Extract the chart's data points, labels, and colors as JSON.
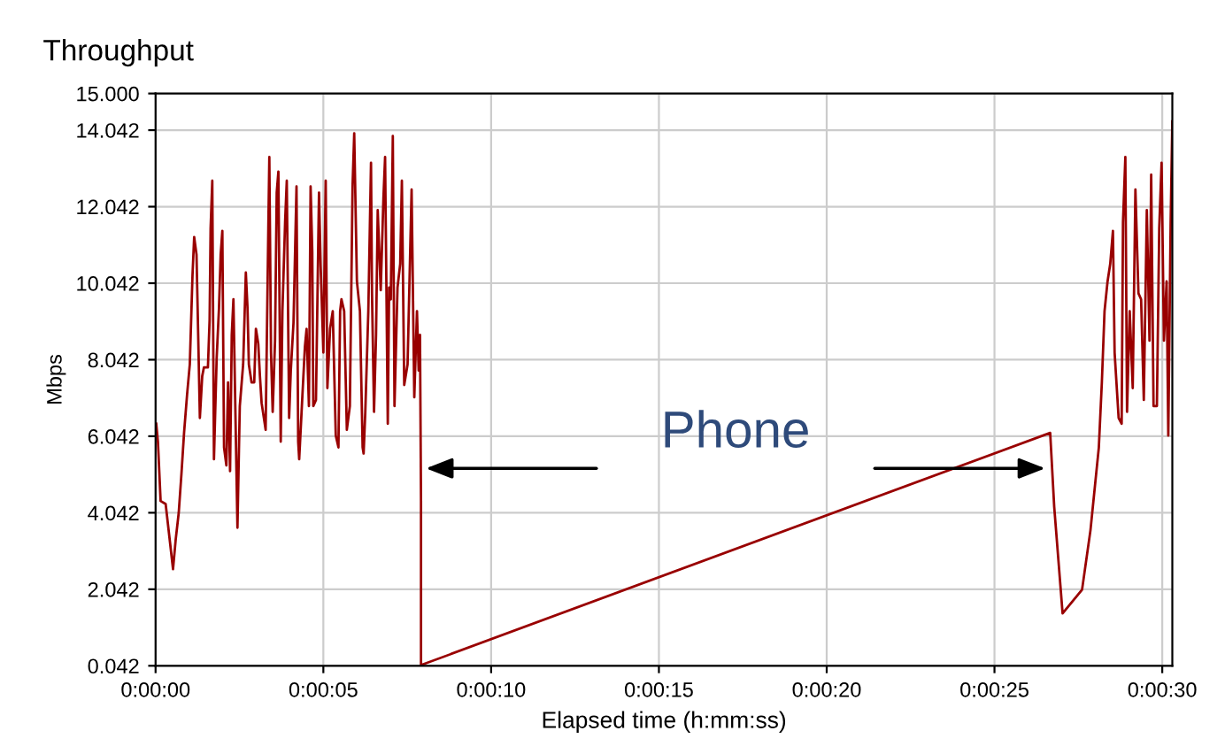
{
  "chart_data": {
    "type": "line",
    "title": "Throughput",
    "xlabel": "Elapsed time (h:mm:ss)",
    "ylabel": "Mbps",
    "annotations": [
      "Phone"
    ],
    "x": [
      0.02,
      0.07,
      0.15,
      0.3,
      0.43,
      0.52,
      0.6,
      0.69,
      0.77,
      0.85,
      0.94,
      1.02,
      1.1,
      1.15,
      1.22,
      1.27,
      1.32,
      1.39,
      1.44,
      1.56,
      1.61,
      1.64,
      1.69,
      1.74,
      1.82,
      1.89,
      1.94,
      1.99,
      2.04,
      2.11,
      2.16,
      2.22,
      2.27,
      2.32,
      2.41,
      2.44,
      2.51,
      2.61,
      2.69,
      2.74,
      2.78,
      2.86,
      2.94,
      2.99,
      3.06,
      3.11,
      3.16,
      3.28,
      3.36,
      3.39,
      3.44,
      3.49,
      3.56,
      3.61,
      3.66,
      3.73,
      3.78,
      3.86,
      3.91,
      3.98,
      4.03,
      4.11,
      4.2,
      4.25,
      4.28,
      4.36,
      4.45,
      4.5,
      4.57,
      4.62,
      4.67,
      4.7,
      4.78,
      4.87,
      4.92,
      5.0,
      5.07,
      5.12,
      5.2,
      5.28,
      5.37,
      5.45,
      5.5,
      5.54,
      5.62,
      5.7,
      5.79,
      5.87,
      5.92,
      6.0,
      6.09,
      6.17,
      6.2,
      6.25,
      6.34,
      6.42,
      6.45,
      6.51,
      6.57,
      6.62,
      6.71,
      6.79,
      6.84,
      6.92,
      6.96,
      7.01,
      7.07,
      7.12,
      7.21,
      7.29,
      7.34,
      7.41,
      7.51,
      7.63,
      7.71,
      7.79,
      7.84,
      7.88,
      7.91,
      7.91,
      26.66,
      26.78,
      27.03,
      27.61,
      27.86,
      28.11,
      28.2,
      28.28,
      28.37,
      28.45,
      28.53,
      28.58,
      28.7,
      28.79,
      28.83,
      28.9,
      28.95,
      29.03,
      29.12,
      29.2,
      29.29,
      29.37,
      29.45,
      29.54,
      29.62,
      29.67,
      29.74,
      29.84,
      29.91,
      29.98,
      30.05,
      30.13,
      30.18,
      30.25,
      30.3
    ],
    "series": [
      {
        "color": "#990000",
        "values": [
          6.37,
          5.9,
          4.35,
          4.27,
          3.27,
          2.57,
          3.34,
          4.04,
          5.05,
          6.14,
          7.14,
          7.92,
          10.24,
          11.25,
          10.79,
          8.69,
          6.52,
          7.61,
          7.84,
          7.84,
          9.08,
          11.48,
          12.72,
          5.44,
          8.07,
          9.39,
          10.79,
          11.41,
          5.75,
          5.28,
          7.45,
          5.13,
          8.69,
          9.62,
          5.13,
          3.65,
          6.83,
          7.92,
          10.32,
          9.39,
          7.92,
          7.45,
          7.45,
          8.85,
          8.46,
          7.61,
          6.91,
          6.21,
          11.48,
          13.34,
          8.23,
          6.68,
          8.54,
          12.41,
          12.96,
          5.9,
          9.31,
          11.64,
          12.72,
          6.52,
          7.76,
          9.0,
          12.57,
          5.9,
          5.44,
          6.83,
          8.38,
          8.85,
          6.83,
          12.57,
          10.86,
          6.83,
          6.99,
          12.41,
          10.48,
          8.23,
          12.72,
          7.3,
          8.85,
          9.31,
          6.06,
          5.75,
          9.31,
          9.62,
          9.31,
          6.21,
          6.83,
          12.57,
          13.96,
          10.09,
          9.31,
          5.75,
          5.59,
          6.68,
          9.31,
          13.19,
          9.78,
          6.68,
          8.69,
          11.95,
          9.86,
          12.26,
          13.34,
          6.37,
          9.93,
          9.62,
          13.89,
          6.83,
          9.93,
          10.55,
          12.72,
          7.38,
          7.92,
          12.49,
          7.06,
          9.31,
          7.76,
          8.69,
          4.35,
          0.06,
          6.13,
          4.2,
          1.41,
          2.03,
          3.58,
          5.75,
          7.45,
          9.31,
          10.09,
          10.55,
          11.41,
          8.23,
          6.52,
          6.37,
          11.64,
          13.34,
          6.68,
          9.31,
          7.3,
          12.49,
          9.78,
          9.62,
          6.99,
          11.95,
          8.54,
          12.88,
          6.83,
          6.83,
          11.48,
          13.19,
          8.54,
          10.09,
          6.06,
          11.64,
          14.27
        ]
      }
    ],
    "xlim": [
      0,
      30.3
    ],
    "xticks": [
      {
        "value": 0,
        "label": "0:00:00"
      },
      {
        "value": 5,
        "label": "0:00:05"
      },
      {
        "value": 10,
        "label": "0:00:10"
      },
      {
        "value": 15,
        "label": "0:00:15"
      },
      {
        "value": 20,
        "label": "0:00:20"
      },
      {
        "value": 25,
        "label": "0:00:25"
      },
      {
        "value": 30,
        "label": "0:00:30"
      }
    ],
    "ylim": [
      0.042,
      15
    ],
    "yticks": [
      0.042,
      2.042,
      4.042,
      6.042,
      8.042,
      10.042,
      12.042,
      14.042,
      {
        "value": 15,
        "label": "15.000"
      }
    ],
    "grid": true,
    "marker": "none",
    "line_style": "solid"
  }
}
